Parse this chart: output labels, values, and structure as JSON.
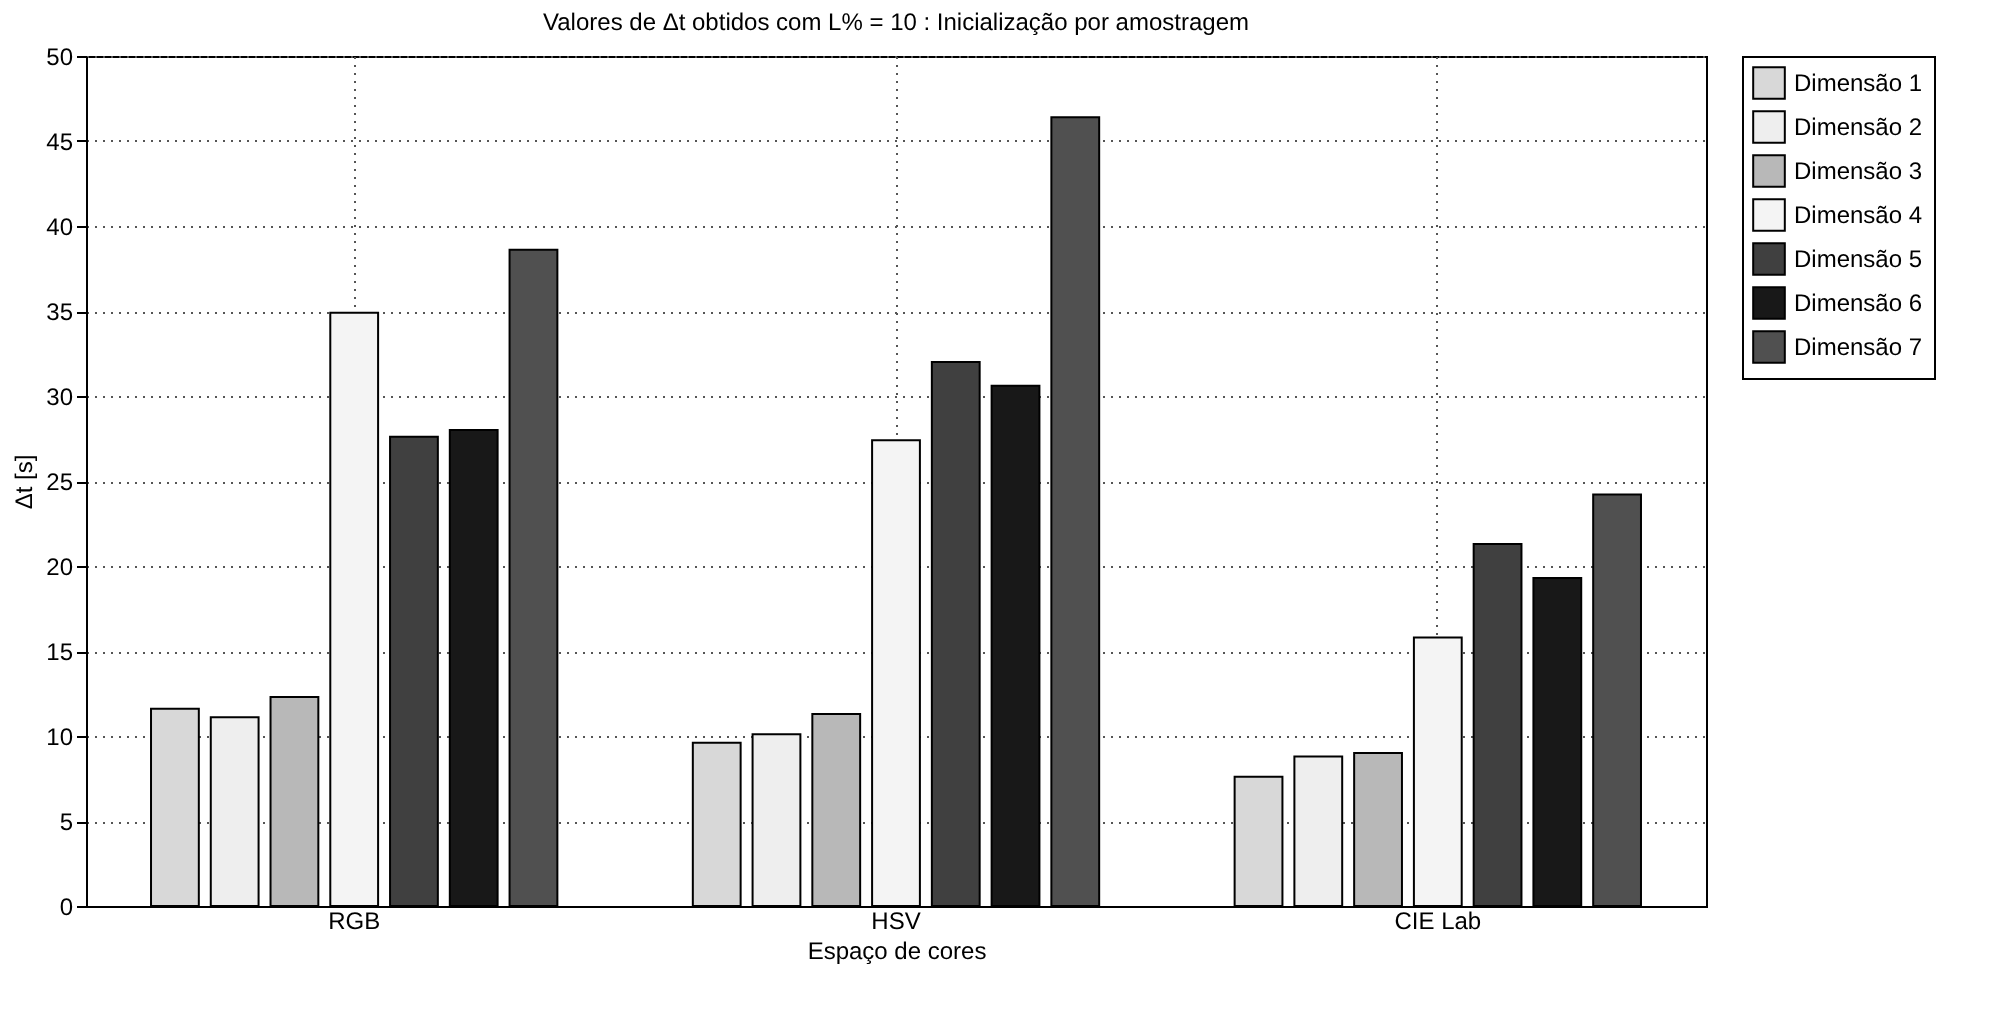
{
  "chart_data": {
    "type": "bar",
    "title": "Valores de Δt obtidos com L% = 10 : Inicialização por amostragem",
    "xlabel": "Espaço de cores",
    "ylabel": "Δt [s]",
    "categories": [
      "RGB",
      "HSV",
      "CIE Lab"
    ],
    "series": [
      {
        "name": "Dimensão 1",
        "color": "#d8d8d8",
        "values": [
          11.6,
          9.6,
          7.6
        ]
      },
      {
        "name": "Dimensão 2",
        "color": "#eeeeee",
        "values": [
          11.1,
          10.1,
          8.8
        ]
      },
      {
        "name": "Dimensão 3",
        "color": "#b8b8b8",
        "values": [
          12.3,
          11.3,
          9.0
        ]
      },
      {
        "name": "Dimensão 4",
        "color": "#f4f4f4",
        "values": [
          34.9,
          27.4,
          15.8
        ]
      },
      {
        "name": "Dimensão 5",
        "color": "#404040",
        "values": [
          27.6,
          32.0,
          21.3
        ]
      },
      {
        "name": "Dimensão 6",
        "color": "#181818",
        "values": [
          28.0,
          30.6,
          19.3
        ]
      },
      {
        "name": "Dimensão 7",
        "color": "#505050",
        "values": [
          38.6,
          46.4,
          24.2
        ]
      }
    ],
    "ylim": [
      0,
      50
    ],
    "yticks": [
      0,
      5,
      10,
      15,
      20,
      25,
      30,
      35,
      40,
      45,
      50
    ],
    "grid": true,
    "legend": "top right"
  }
}
